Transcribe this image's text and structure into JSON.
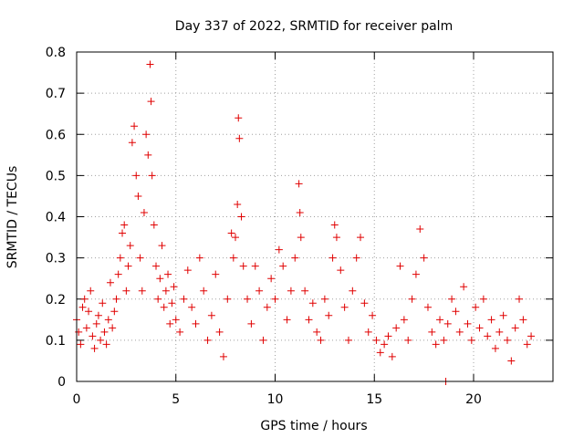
{
  "chart_data": {
    "type": "scatter",
    "title": "Day 337 of 2022, SRMTID for receiver palm",
    "xlabel": "GPS time / hours",
    "ylabel": "SRMTID / TECUs",
    "xlim": [
      0,
      24
    ],
    "ylim": [
      0,
      0.8
    ],
    "xticks": [
      "0",
      "5",
      "10",
      "15",
      "20"
    ],
    "xtick_values": [
      0,
      5,
      10,
      15,
      20
    ],
    "yticks": [
      "0",
      "0.1",
      "0.2",
      "0.3",
      "0.4",
      "0.5",
      "0.6",
      "0.7",
      "0.8"
    ],
    "ytick_values": [
      0,
      0.1,
      0.2,
      0.3,
      0.4,
      0.5,
      0.6,
      0.7,
      0.8
    ],
    "grid": true,
    "marker": "+",
    "series": [
      {
        "name": "SRMTID",
        "color": "#e00000",
        "points": [
          [
            0.0,
            0.15
          ],
          [
            0.1,
            0.12
          ],
          [
            0.2,
            0.09
          ],
          [
            0.3,
            0.18
          ],
          [
            0.4,
            0.2
          ],
          [
            0.5,
            0.13
          ],
          [
            0.6,
            0.17
          ],
          [
            0.7,
            0.22
          ],
          [
            0.8,
            0.11
          ],
          [
            0.9,
            0.08
          ],
          [
            1.0,
            0.14
          ],
          [
            1.1,
            0.16
          ],
          [
            1.2,
            0.1
          ],
          [
            1.3,
            0.19
          ],
          [
            1.4,
            0.12
          ],
          [
            1.5,
            0.09
          ],
          [
            1.6,
            0.15
          ],
          [
            1.7,
            0.24
          ],
          [
            1.8,
            0.13
          ],
          [
            1.9,
            0.17
          ],
          [
            2.0,
            0.2
          ],
          [
            2.1,
            0.26
          ],
          [
            2.2,
            0.3
          ],
          [
            2.3,
            0.36
          ],
          [
            2.4,
            0.38
          ],
          [
            2.5,
            0.22
          ],
          [
            2.6,
            0.28
          ],
          [
            2.7,
            0.33
          ],
          [
            2.8,
            0.58
          ],
          [
            2.9,
            0.62
          ],
          [
            3.0,
            0.5
          ],
          [
            3.1,
            0.45
          ],
          [
            3.2,
            0.3
          ],
          [
            3.3,
            0.22
          ],
          [
            3.4,
            0.41
          ],
          [
            3.5,
            0.6
          ],
          [
            3.6,
            0.55
          ],
          [
            3.7,
            0.77
          ],
          [
            3.75,
            0.68
          ],
          [
            3.8,
            0.5
          ],
          [
            3.9,
            0.38
          ],
          [
            4.0,
            0.28
          ],
          [
            4.1,
            0.2
          ],
          [
            4.2,
            0.25
          ],
          [
            4.3,
            0.33
          ],
          [
            4.4,
            0.18
          ],
          [
            4.5,
            0.22
          ],
          [
            4.6,
            0.26
          ],
          [
            4.7,
            0.14
          ],
          [
            4.8,
            0.19
          ],
          [
            4.9,
            0.23
          ],
          [
            5.0,
            0.15
          ],
          [
            5.2,
            0.12
          ],
          [
            5.4,
            0.2
          ],
          [
            5.6,
            0.27
          ],
          [
            5.8,
            0.18
          ],
          [
            6.0,
            0.14
          ],
          [
            6.2,
            0.3
          ],
          [
            6.4,
            0.22
          ],
          [
            6.6,
            0.1
          ],
          [
            6.8,
            0.16
          ],
          [
            7.0,
            0.26
          ],
          [
            7.2,
            0.12
          ],
          [
            7.4,
            0.06
          ],
          [
            7.6,
            0.2
          ],
          [
            7.8,
            0.36
          ],
          [
            7.9,
            0.3
          ],
          [
            8.0,
            0.35
          ],
          [
            8.1,
            0.43
          ],
          [
            8.15,
            0.64
          ],
          [
            8.2,
            0.59
          ],
          [
            8.3,
            0.4
          ],
          [
            8.4,
            0.28
          ],
          [
            8.6,
            0.2
          ],
          [
            8.8,
            0.14
          ],
          [
            9.0,
            0.28
          ],
          [
            9.2,
            0.22
          ],
          [
            9.4,
            0.1
          ],
          [
            9.6,
            0.18
          ],
          [
            9.8,
            0.25
          ],
          [
            10.0,
            0.2
          ],
          [
            10.2,
            0.32
          ],
          [
            10.4,
            0.28
          ],
          [
            10.6,
            0.15
          ],
          [
            10.8,
            0.22
          ],
          [
            11.0,
            0.3
          ],
          [
            11.2,
            0.48
          ],
          [
            11.25,
            0.41
          ],
          [
            11.3,
            0.35
          ],
          [
            11.5,
            0.22
          ],
          [
            11.7,
            0.15
          ],
          [
            11.9,
            0.19
          ],
          [
            12.1,
            0.12
          ],
          [
            12.3,
            0.1
          ],
          [
            12.5,
            0.2
          ],
          [
            12.7,
            0.16
          ],
          [
            12.9,
            0.3
          ],
          [
            13.0,
            0.38
          ],
          [
            13.1,
            0.35
          ],
          [
            13.3,
            0.27
          ],
          [
            13.5,
            0.18
          ],
          [
            13.7,
            0.1
          ],
          [
            13.9,
            0.22
          ],
          [
            14.1,
            0.3
          ],
          [
            14.3,
            0.35
          ],
          [
            14.5,
            0.19
          ],
          [
            14.7,
            0.12
          ],
          [
            14.9,
            0.16
          ],
          [
            15.1,
            0.1
          ],
          [
            15.3,
            0.07
          ],
          [
            15.5,
            0.09
          ],
          [
            15.7,
            0.11
          ],
          [
            15.9,
            0.06
          ],
          [
            16.1,
            0.13
          ],
          [
            16.3,
            0.28
          ],
          [
            16.5,
            0.15
          ],
          [
            16.7,
            0.1
          ],
          [
            16.9,
            0.2
          ],
          [
            17.1,
            0.26
          ],
          [
            17.3,
            0.37
          ],
          [
            17.5,
            0.3
          ],
          [
            17.7,
            0.18
          ],
          [
            17.9,
            0.12
          ],
          [
            18.1,
            0.09
          ],
          [
            18.3,
            0.15
          ],
          [
            18.5,
            0.1
          ],
          [
            18.6,
            0.0
          ],
          [
            18.7,
            0.14
          ],
          [
            18.9,
            0.2
          ],
          [
            19.1,
            0.17
          ],
          [
            19.3,
            0.12
          ],
          [
            19.5,
            0.23
          ],
          [
            19.7,
            0.14
          ],
          [
            19.9,
            0.1
          ],
          [
            20.1,
            0.18
          ],
          [
            20.3,
            0.13
          ],
          [
            20.5,
            0.2
          ],
          [
            20.7,
            0.11
          ],
          [
            20.9,
            0.15
          ],
          [
            21.1,
            0.08
          ],
          [
            21.3,
            0.12
          ],
          [
            21.5,
            0.16
          ],
          [
            21.7,
            0.1
          ],
          [
            21.9,
            0.05
          ],
          [
            22.1,
            0.13
          ],
          [
            22.3,
            0.2
          ],
          [
            22.5,
            0.15
          ],
          [
            22.7,
            0.09
          ],
          [
            22.9,
            0.11
          ]
        ]
      }
    ]
  }
}
